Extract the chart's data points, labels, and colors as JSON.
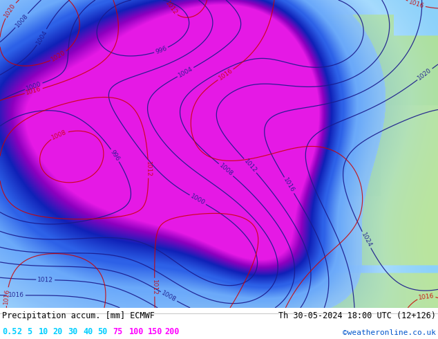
{
  "title_left": "Precipitation accum. [mm] ECMWF",
  "title_right": "Th 30-05-2024 18:00 UTC (12+126)",
  "credit": "©weatheronline.co.uk",
  "legend_values": [
    "0.5",
    "2",
    "5",
    "10",
    "20",
    "30",
    "40",
    "50",
    "75",
    "100",
    "150",
    "200"
  ],
  "legend_text_colors": [
    "#00cfff",
    "#00cfff",
    "#00cfff",
    "#00cfff",
    "#00cfff",
    "#00cfff",
    "#00cfff",
    "#00cfff",
    "#ff00ff",
    "#ff00ff",
    "#ff00ff",
    "#ff00ff"
  ],
  "bg_color": "#ffffff",
  "figsize": [
    6.34,
    4.9
  ],
  "dpi": 100,
  "map_colors": {
    "ocean_base": [
      0.55,
      0.82,
      0.98
    ],
    "land_green": [
      0.68,
      0.88,
      0.6
    ],
    "land_yellow_green": [
      0.8,
      0.92,
      0.65
    ],
    "precip_light": [
      0.7,
      0.88,
      1.0
    ],
    "precip_med": [
      0.4,
      0.65,
      0.98
    ],
    "precip_dark": [
      0.15,
      0.35,
      0.9
    ],
    "precip_vdark": [
      0.05,
      0.1,
      0.7
    ],
    "precip_purple": [
      0.55,
      0.0,
      0.75
    ],
    "precip_magenta": [
      0.9,
      0.1,
      0.9
    ]
  }
}
